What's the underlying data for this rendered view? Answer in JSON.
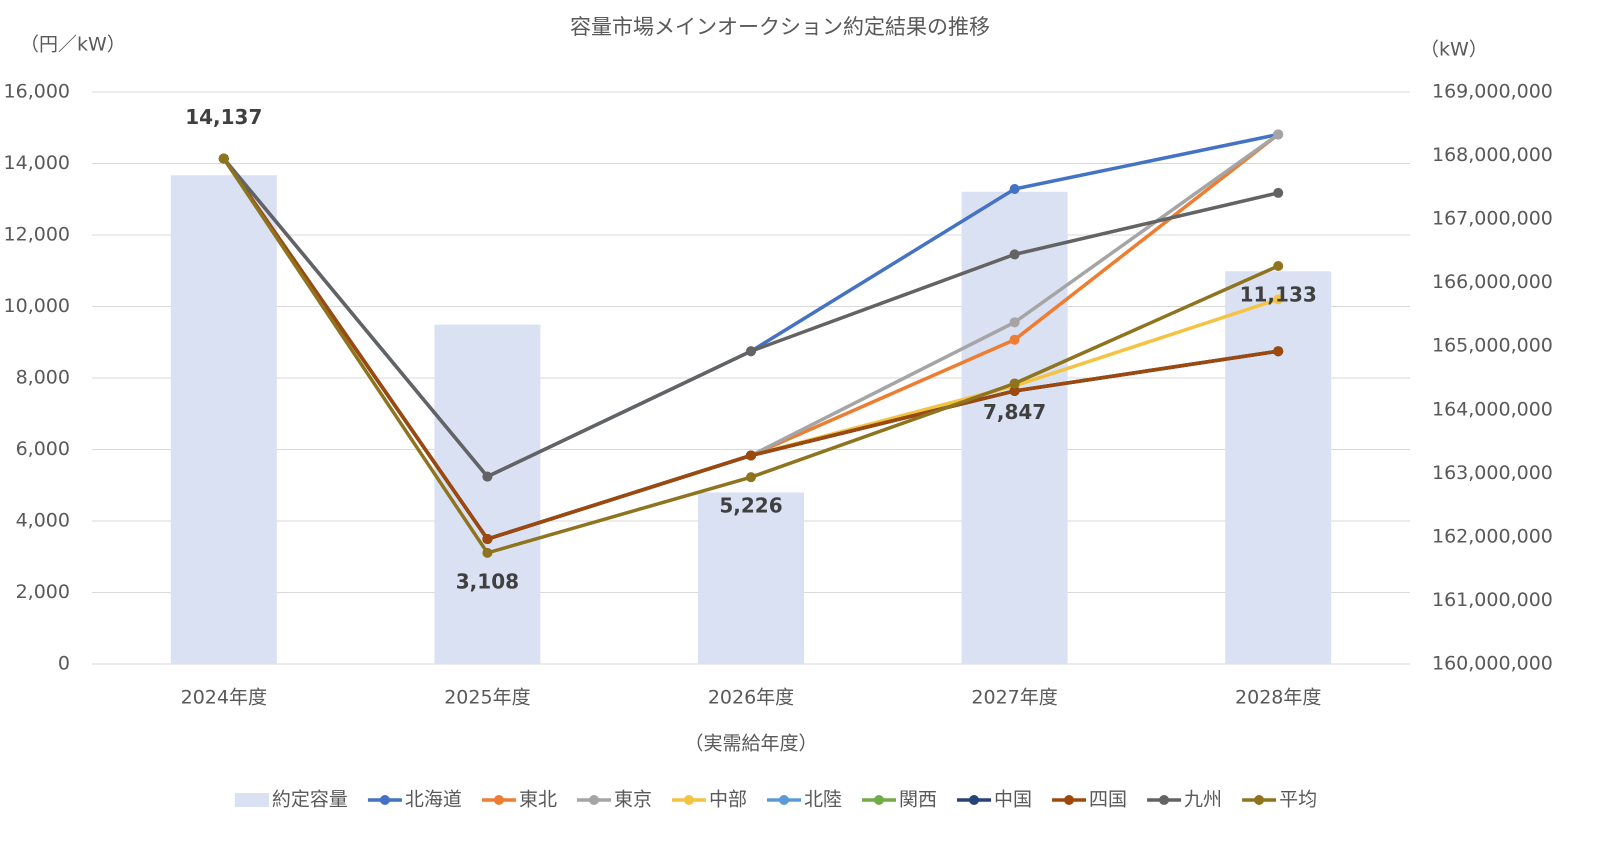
{
  "chart_data": {
    "type": "combo",
    "title": "容量市場メインオークション約定結果の推移",
    "y_label": "（円／kW）",
    "y2_label": "（kW）",
    "x_label": "（実需給年度）",
    "categories": [
      "2024年度",
      "2025年度",
      "2026年度",
      "2027年度",
      "2028年度"
    ],
    "ylim": [
      0,
      16000
    ],
    "yticks": [
      0,
      {
        "value": 2000,
        "label": "2,000"
      },
      {
        "value": 4000,
        "label": "4,000"
      },
      {
        "value": 6000,
        "label": "6,000"
      },
      {
        "value": 8000,
        "label": "8,000"
      },
      {
        "value": 10000,
        "label": "10,000"
      },
      {
        "value": 12000,
        "label": "12,000"
      },
      {
        "value": 14000,
        "label": "14,000"
      },
      {
        "value": 16000,
        "label": "16,000"
      }
    ],
    "y2lim": [
      160000000,
      169000000
    ],
    "y2ticks": [
      {
        "value": 160000000,
        "label": "160,000,000"
      },
      {
        "value": 161000000,
        "label": "161,000,000"
      },
      {
        "value": 162000000,
        "label": "162,000,000"
      },
      {
        "value": 163000000,
        "label": "163,000,000"
      },
      {
        "value": 164000000,
        "label": "164,000,000"
      },
      {
        "value": 165000000,
        "label": "165,000,000"
      },
      {
        "value": 166000000,
        "label": "166,000,000"
      },
      {
        "value": 167000000,
        "label": "167,000,000"
      },
      {
        "value": 168000000,
        "label": "168,000,000"
      },
      {
        "value": 169000000,
        "label": "169,000,000"
      }
    ],
    "grid": true,
    "legend": "bottom",
    "series": [
      {
        "name": "約定容量",
        "type": "bar",
        "axis": "y2",
        "color": "#dae1f3",
        "values": [
          167690000,
          165340000,
          162700000,
          167430000,
          166180000
        ]
      },
      {
        "name": "北海道",
        "type": "line",
        "color": "#4472c4",
        "values": [
          14137,
          5242,
          8749,
          13287,
          14812
        ]
      },
      {
        "name": "東北",
        "type": "line",
        "color": "#ed7d31",
        "values": [
          14137,
          3495,
          5833,
          9071,
          14812
        ]
      },
      {
        "name": "東京",
        "type": "line",
        "color": "#a5a5a5",
        "values": [
          14137,
          3495,
          5833,
          9557,
          14812
        ]
      },
      {
        "name": "中部",
        "type": "line",
        "color": "#f5c342",
        "values": [
          14137,
          3495,
          5833,
          7780,
          10200
        ]
      },
      {
        "name": "北陸",
        "type": "line",
        "color": "#5b9bd5",
        "values": [
          14137,
          3495,
          5833,
          7638,
          8750
        ]
      },
      {
        "name": "関西",
        "type": "line",
        "color": "#70ad47",
        "values": [
          14137,
          3495,
          5833,
          7638,
          8750
        ]
      },
      {
        "name": "中国",
        "type": "line",
        "color": "#264478",
        "values": [
          14137,
          3495,
          5833,
          7638,
          8750
        ]
      },
      {
        "name": "四国",
        "type": "line",
        "color": "#9e480e",
        "values": [
          14137,
          3495,
          5833,
          7638,
          8750
        ]
      },
      {
        "name": "九州",
        "type": "line",
        "color": "#636363",
        "values": [
          14137,
          5242,
          8749,
          11457,
          13177
        ]
      },
      {
        "name": "平均",
        "type": "line",
        "color": "#8f7420",
        "values": [
          14137,
          3108,
          5226,
          7847,
          11133
        ],
        "value_labels": [
          "14,137",
          "3,108",
          "5,226",
          "7,847",
          "11,133"
        ]
      }
    ]
  }
}
